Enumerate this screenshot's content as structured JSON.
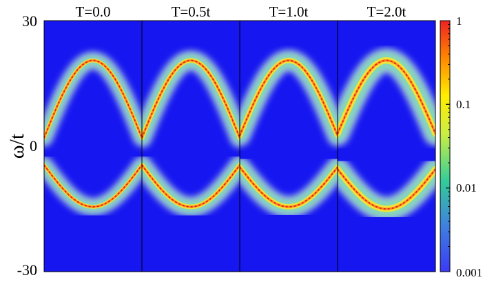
{
  "chart_data": {
    "type": "heatmap",
    "ylabel": "ω/t",
    "ylim": [
      -30,
      30
    ],
    "y_ticks": [
      "30",
      "0",
      "-30"
    ],
    "panels": [
      {
        "title": "T=0.0",
        "T": 0.0,
        "upper_band_peak": 20.5,
        "upper_band_edge": 2.0,
        "lower_band_edge": -4.5,
        "lower_band_min": -14.5,
        "broadening": 1.5
      },
      {
        "title": "T=0.5t",
        "T": 0.5,
        "upper_band_peak": 20.5,
        "upper_band_edge": 2.0,
        "lower_band_edge": -4.5,
        "lower_band_min": -14.5,
        "broadening": 2.5
      },
      {
        "title": "T=1.0t",
        "T": 1.0,
        "upper_band_peak": 20.5,
        "upper_band_edge": 2.5,
        "lower_band_edge": -5.0,
        "lower_band_min": -14.5,
        "broadening": 3.2
      },
      {
        "title": "T=2.0t",
        "T": 2.0,
        "upper_band_peak": 20.5,
        "upper_band_edge": 3.0,
        "lower_band_edge": -5.5,
        "lower_band_min": -15.0,
        "broadening": 4.5
      }
    ],
    "colorbar": {
      "scale": "log",
      "range": [
        0.001,
        1
      ],
      "tick_labels": [
        "1",
        "0.1",
        "0.01",
        "0.001"
      ],
      "colors": [
        "#3b3bf5",
        "#33cc99",
        "#ccee44",
        "#ffee00",
        "#ff8800",
        "#ee2222"
      ]
    },
    "background_color": "#1616f0"
  }
}
